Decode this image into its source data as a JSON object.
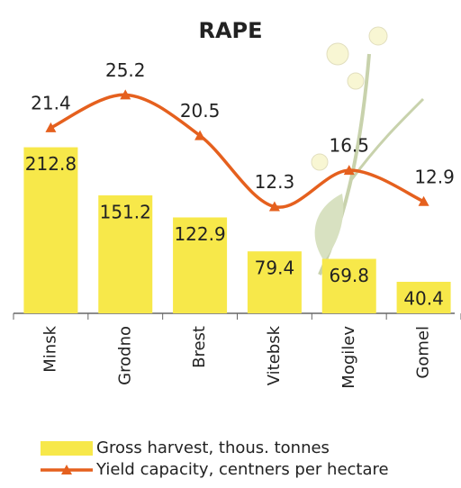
{
  "chart_data": {
    "type": "bar",
    "title": "RAPE",
    "categories": [
      "Minsk",
      "Grodno",
      "Brest",
      "Vitebsk",
      "Mogilev",
      "Gomel"
    ],
    "series": [
      {
        "name": "Gross harvest, thous. tonnes",
        "type": "bar",
        "color": "#f7e84a",
        "values": [
          212.8,
          151.2,
          122.9,
          79.4,
          69.8,
          40.4
        ]
      },
      {
        "name": "Yield capacity, centners per hectare",
        "type": "line",
        "axis": "y2",
        "color": "#e5601e",
        "values": [
          21.4,
          25.2,
          20.5,
          12.3,
          16.5,
          12.9
        ]
      }
    ],
    "ylim": [
      0,
      300
    ],
    "y2lim": [
      0,
      27
    ]
  }
}
